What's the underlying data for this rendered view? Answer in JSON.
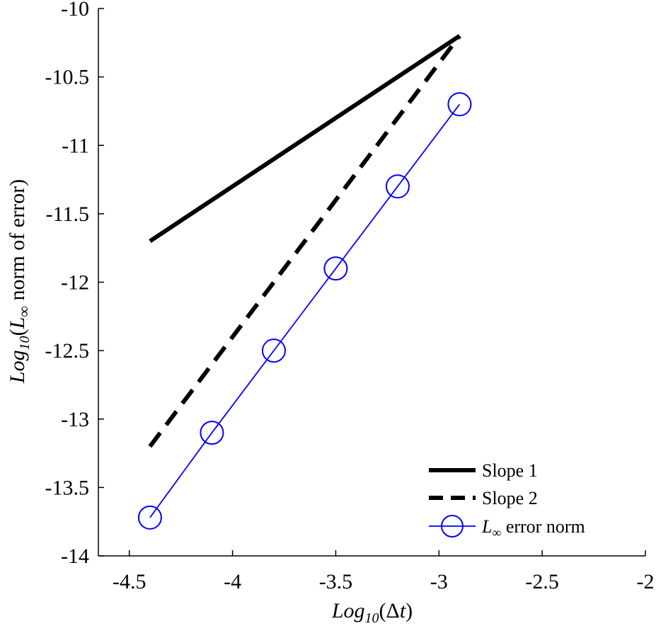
{
  "chart_data": {
    "type": "line",
    "title": "",
    "xlabel": {
      "prefix": "Log",
      "sub": "10",
      "body": "(Δ",
      "var": "t",
      "suffix": ")"
    },
    "ylabel": {
      "prefix": "Log",
      "sub": "10",
      "body": "(",
      "var": "L",
      "varsub": "∞",
      "suffix": " norm of error)"
    },
    "xlim": [
      -4.65,
      -2
    ],
    "ylim": [
      -14,
      -10
    ],
    "xticks": [
      -4.5,
      -4,
      -3.5,
      -3,
      -2.5,
      -2
    ],
    "xtick_labels": [
      "-4.5",
      "-4",
      "-3.5",
      "-3",
      "-2.5",
      "-2"
    ],
    "yticks": [
      -14,
      -13.5,
      -13,
      -12.5,
      -12,
      -11.5,
      -11,
      -10.5,
      -10
    ],
    "ytick_labels": [
      "-14",
      "-13.5",
      "-13",
      "-12.5",
      "-12",
      "-11.5",
      "-11",
      "-10.5",
      "-10"
    ],
    "grid": false,
    "legend_position": "bottom-right",
    "series": [
      {
        "name": "Slope 1",
        "style": "solid",
        "color": "#000000",
        "marker": "none",
        "x": [
          -4.4,
          -2.9
        ],
        "y": [
          -11.7,
          -10.2
        ]
      },
      {
        "name": "Slope 2",
        "style": "dashed",
        "color": "#000000",
        "marker": "none",
        "x": [
          -4.4,
          -2.9
        ],
        "y": [
          -13.2,
          -10.2
        ]
      },
      {
        "name_parts": {
          "var": "L",
          "sub": "∞",
          "rest": " error norm"
        },
        "style": "solid",
        "color": "#0000ff",
        "marker": "circle",
        "x": [
          -4.4,
          -4.1,
          -3.8,
          -3.5,
          -3.2,
          -2.9
        ],
        "y": [
          -13.72,
          -13.1,
          -12.5,
          -11.9,
          -11.3,
          -10.7
        ]
      }
    ]
  }
}
